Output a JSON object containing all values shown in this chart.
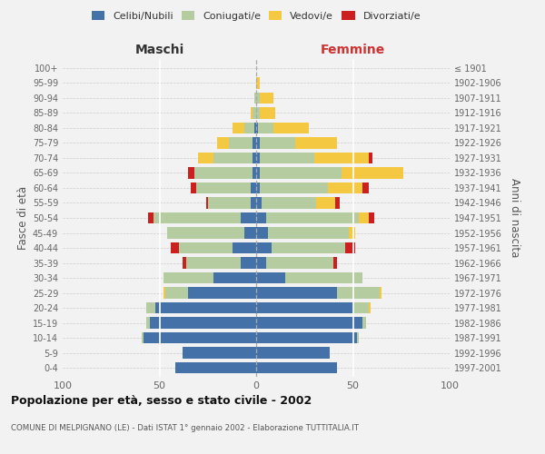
{
  "age_groups": [
    "0-4",
    "5-9",
    "10-14",
    "15-19",
    "20-24",
    "25-29",
    "30-34",
    "35-39",
    "40-44",
    "45-49",
    "50-54",
    "55-59",
    "60-64",
    "65-69",
    "70-74",
    "75-79",
    "80-84",
    "85-89",
    "90-94",
    "95-99",
    "100+"
  ],
  "birth_years": [
    "1997-2001",
    "1992-1996",
    "1987-1991",
    "1982-1986",
    "1977-1981",
    "1972-1976",
    "1967-1971",
    "1962-1966",
    "1957-1961",
    "1952-1956",
    "1947-1951",
    "1942-1946",
    "1937-1941",
    "1932-1936",
    "1927-1931",
    "1922-1926",
    "1917-1921",
    "1912-1916",
    "1907-1911",
    "1902-1906",
    "≤ 1901"
  ],
  "colors": {
    "celibi": "#4472a8",
    "coniugati": "#b5cba0",
    "vedovi": "#f5c842",
    "divorziati": "#cc2020"
  },
  "maschi": {
    "celibi": [
      42,
      38,
      58,
      55,
      52,
      35,
      22,
      8,
      12,
      6,
      8,
      3,
      3,
      2,
      2,
      2,
      1,
      0,
      0,
      0,
      0
    ],
    "coniugati": [
      0,
      0,
      1,
      2,
      5,
      12,
      26,
      28,
      28,
      40,
      45,
      22,
      28,
      30,
      20,
      12,
      5,
      2,
      1,
      0,
      0
    ],
    "vedovi": [
      0,
      0,
      0,
      0,
      0,
      1,
      0,
      0,
      0,
      0,
      0,
      0,
      0,
      0,
      8,
      6,
      6,
      1,
      0,
      0,
      0
    ],
    "divorziati": [
      0,
      0,
      0,
      0,
      0,
      0,
      0,
      2,
      4,
      0,
      3,
      1,
      3,
      3,
      0,
      0,
      0,
      0,
      0,
      0,
      0
    ]
  },
  "femmine": {
    "celibi": [
      42,
      38,
      52,
      55,
      50,
      42,
      15,
      5,
      8,
      6,
      5,
      3,
      2,
      2,
      2,
      2,
      1,
      0,
      0,
      0,
      0
    ],
    "coniugati": [
      0,
      0,
      1,
      2,
      8,
      22,
      40,
      35,
      38,
      42,
      48,
      28,
      35,
      42,
      28,
      18,
      8,
      2,
      2,
      0,
      0
    ],
    "vedovi": [
      0,
      0,
      0,
      0,
      1,
      1,
      0,
      0,
      0,
      3,
      5,
      10,
      18,
      32,
      28,
      22,
      18,
      8,
      7,
      2,
      0
    ],
    "divorziati": [
      0,
      0,
      0,
      0,
      0,
      0,
      0,
      2,
      5,
      0,
      3,
      2,
      3,
      0,
      2,
      0,
      0,
      0,
      0,
      0,
      0
    ]
  },
  "xlim": 100,
  "title": "Popolazione per età, sesso e stato civile - 2002",
  "subtitle": "COMUNE DI MELPIGNANO (LE) - Dati ISTAT 1° gennaio 2002 - Elaborazione TUTTITALIA.IT",
  "ylabel_left": "Fasce di età",
  "ylabel_right": "Anni di nascita",
  "xlabel_left": "Maschi",
  "xlabel_right": "Femmine",
  "legend_labels": [
    "Celibi/Nubili",
    "Coniugati/e",
    "Vedovi/e",
    "Divorziati/e"
  ],
  "background_color": "#f2f2f2"
}
